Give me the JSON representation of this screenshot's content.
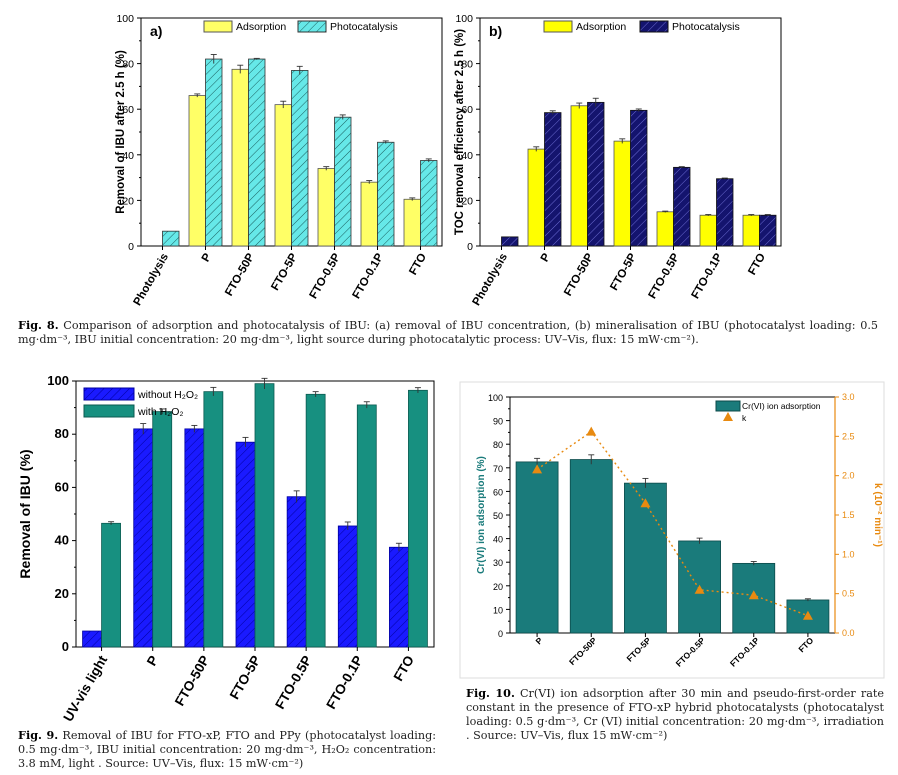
{
  "chart_data": [
    {
      "type": "bar",
      "panel_label": "a)",
      "categories": [
        "Photolysis",
        "P",
        "FTO-50P",
        "FTO-5P",
        "FTO-0.5P",
        "FTO-0.1P",
        "FTO"
      ],
      "series": [
        {
          "name": "Adsorption",
          "values": [
            null,
            66,
            77.5,
            62,
            34,
            28,
            20.5
          ],
          "errors": [
            0,
            0.7,
            1.8,
            1.5,
            0.8,
            0.7,
            0.6
          ]
        },
        {
          "name": "Photocatalysis",
          "values": [
            6.5,
            82,
            82,
            77,
            56.5,
            45.5,
            37.5
          ],
          "errors": [
            0,
            2.0,
            0.3,
            1.8,
            1.0,
            0.6,
            0.7
          ]
        }
      ],
      "ylabel": "Removal of IBU after 2.5 h (%)",
      "ylim": [
        0,
        100
      ],
      "yticks": [
        "0",
        "20",
        "40",
        "60",
        "80",
        "100"
      ],
      "legend": "top",
      "colors": {
        "adsorption": "#ffff66",
        "photocatalysis": "#66e8e8"
      },
      "patterns": [
        "plain",
        "hatched"
      ]
    },
    {
      "type": "bar",
      "panel_label": "b)",
      "categories": [
        "Photolysis",
        "P",
        "FTO-50P",
        "FTO-5P",
        "FTO-0.5P",
        "FTO-0.1P",
        "FTO"
      ],
      "series": [
        {
          "name": "Adsorption",
          "values": [
            null,
            42.5,
            61.5,
            46,
            15,
            13.5,
            13.5
          ],
          "errors": [
            0,
            1.0,
            1.2,
            1.0,
            0.3,
            0.3,
            0.3
          ]
        },
        {
          "name": "Photocatalysis",
          "values": [
            4,
            58.5,
            63,
            59.5,
            34.5,
            29.5,
            13.5
          ],
          "errors": [
            0,
            0.8,
            1.8,
            0.6,
            0.3,
            0.3,
            0.3
          ]
        }
      ],
      "ylabel": "TOC removal efficiency after 2.5 h (%)",
      "ylim": [
        0,
        100
      ],
      "yticks": [
        "0",
        "20",
        "40",
        "60",
        "80",
        "100"
      ],
      "legend": "top",
      "colors": {
        "adsorption": "#ffff00",
        "photocatalysis": "#14146e"
      },
      "patterns": [
        "plain",
        "hatched"
      ]
    },
    {
      "type": "bar",
      "categories": [
        "UV-vis light",
        "P",
        "FTO-50P",
        "FTO-5P",
        "FTO-0.5P",
        "FTO-0.1P",
        "FTO"
      ],
      "series": [
        {
          "name": "without H₂O₂",
          "values": [
            6,
            82,
            82,
            77,
            56.5,
            45.5,
            37.5
          ],
          "errors": [
            0,
            2.0,
            1.3,
            1.8,
            2.2,
            1.5,
            1.5
          ]
        },
        {
          "name": "with H₂O₂",
          "values": [
            46.5,
            88.5,
            96,
            99,
            95,
            91,
            96.5
          ],
          "errors": [
            0.6,
            1.0,
            1.6,
            2.0,
            1.0,
            1.2,
            1.0
          ]
        }
      ],
      "ylabel": "Removal of IBU (%)",
      "ylim": [
        0,
        100
      ],
      "yticks": [
        "0",
        "20",
        "40",
        "60",
        "80",
        "100"
      ],
      "legend": "top-left",
      "colors": {
        "without": "#1a1aff",
        "with": "#179080"
      },
      "patterns": [
        "hatched",
        "plain"
      ]
    },
    {
      "type": "bar",
      "categories": [
        "P",
        "FTO-50P",
        "FTO-5P",
        "FTO-0.5P",
        "FTO-0.1P",
        "FTO"
      ],
      "series": [
        {
          "name": "Cr(VI) ion adsorption",
          "values": [
            72.5,
            73.5,
            63.5,
            39,
            29.5,
            14
          ],
          "errors": [
            1.5,
            2.0,
            2.0,
            1.2,
            0.8,
            0.5
          ],
          "axis": "left"
        },
        {
          "name": "k",
          "type": "scatter",
          "values": [
            2.08,
            2.56,
            1.65,
            0.55,
            0.48,
            0.22
          ],
          "axis": "right",
          "line": "dotted"
        }
      ],
      "ylabel": "Cr(VI) ion adsorption (%)",
      "ylabel_right": "k (10⁻² min⁻¹)",
      "ylim": [
        0,
        100
      ],
      "ylim_right": [
        0,
        3.0
      ],
      "yticks": [
        "0",
        "10",
        "20",
        "30",
        "40",
        "50",
        "60",
        "70",
        "80",
        "90",
        "100"
      ],
      "yticks_right": [
        "0.0",
        "0.5",
        "1.0",
        "1.5",
        "2.0",
        "2.5",
        "3.0"
      ],
      "legend": "top-right",
      "grid": false,
      "colors": {
        "bar": "#1a7b7b",
        "bar_edge": "#0c4a4a",
        "k": "#e88a10",
        "right_axis": "#e88a10",
        "left_label": "#1a7b7b"
      }
    }
  ],
  "captions": {
    "fig8_label": "Fig. 8.",
    "fig8_text": "Comparison of adsorption and photocatalysis of IBU: (a) removal of IBU concentration, (b) mineralisation of IBU (photocatalyst loading: 0.5 mg·dm⁻³, IBU initial concentration: 20 mg·dm⁻³, light source during photocatalytic process: UV–Vis, flux: 15 mW·cm⁻²).",
    "fig9_label": "Fig. 9.",
    "fig9_text": "Removal of IBU for FTO-xP, FTO and PPy (photocatalyst loading: 0.5 mg·dm⁻³, IBU initial concentration: 20 mg·dm⁻³, H₂O₂ concentration: 3.8 mM, light . Source: UV–Vis, flux: 15 mW·cm⁻²)",
    "fig10_label": "Fig. 10.",
    "fig10_text": "Cr(VI) ion adsorption after 30 min and pseudo-first-order rate constant in the presence of FTO-xP hybrid photocatalysts (photocatalyst loading: 0.5 g·dm⁻³, Cr (VI) initial concentration: 20 mg·dm⁻³, irradiation . Source: UV–Vis, flux 15 mW·cm⁻²)"
  }
}
